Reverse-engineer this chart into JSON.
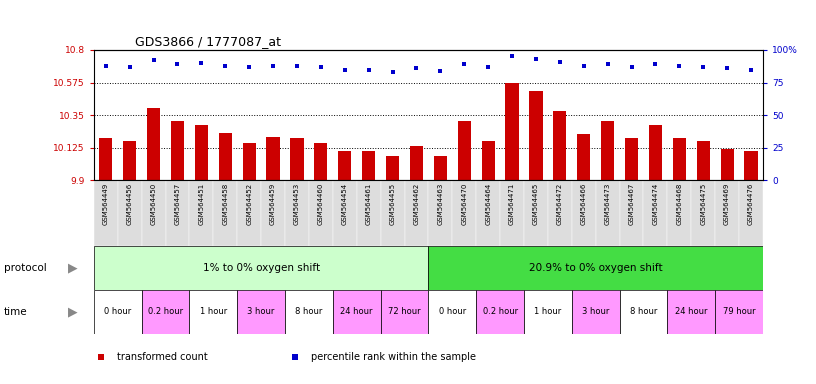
{
  "title": "GDS3866 / 1777087_at",
  "samples": [
    "GSM564449",
    "GSM564456",
    "GSM564450",
    "GSM564457",
    "GSM564451",
    "GSM564458",
    "GSM564452",
    "GSM564459",
    "GSM564453",
    "GSM564460",
    "GSM564454",
    "GSM564461",
    "GSM564455",
    "GSM564462",
    "GSM564463",
    "GSM564470",
    "GSM564464",
    "GSM564471",
    "GSM564465",
    "GSM564472",
    "GSM564466",
    "GSM564473",
    "GSM564467",
    "GSM564474",
    "GSM564468",
    "GSM564475",
    "GSM564469",
    "GSM564476"
  ],
  "bar_values": [
    10.19,
    10.17,
    10.4,
    10.31,
    10.28,
    10.23,
    10.16,
    10.2,
    10.19,
    10.16,
    10.1,
    10.1,
    10.07,
    10.14,
    10.07,
    10.31,
    10.17,
    10.57,
    10.52,
    10.38,
    10.22,
    10.31,
    10.19,
    10.28,
    10.19,
    10.17,
    10.12,
    10.1
  ],
  "percentile_values": [
    88,
    87,
    92,
    89,
    90,
    88,
    87,
    88,
    88,
    87,
    85,
    85,
    83,
    86,
    84,
    89,
    87,
    95,
    93,
    91,
    88,
    89,
    87,
    89,
    88,
    87,
    86,
    85
  ],
  "ymin": 9.9,
  "ymax": 10.8,
  "yticks_left": [
    9.9,
    10.125,
    10.35,
    10.575,
    10.8
  ],
  "ytick_labels_left": [
    "9.9",
    "10.125",
    "10.35",
    "10.575",
    "10.8"
  ],
  "yticks_right_vals": [
    0,
    25,
    50,
    75,
    100
  ],
  "ytick_labels_right": [
    "0",
    "25",
    "50",
    "75",
    "100%"
  ],
  "dotted_lines": [
    10.125,
    10.35,
    10.575
  ],
  "bar_color": "#cc0000",
  "dot_color": "#0000cc",
  "protocol_groups": [
    {
      "label": "1% to 0% oxygen shift",
      "start": 0,
      "end": 14,
      "color": "#ccffcc"
    },
    {
      "label": "20.9% to 0% oxygen shift",
      "start": 14,
      "end": 28,
      "color": "#44dd44"
    }
  ],
  "time_groups": [
    {
      "label": "0 hour",
      "start": 0,
      "end": 2,
      "color": "#ffffff"
    },
    {
      "label": "0.2 hour",
      "start": 2,
      "end": 4,
      "color": "#ff99ff"
    },
    {
      "label": "1 hour",
      "start": 4,
      "end": 6,
      "color": "#ffffff"
    },
    {
      "label": "3 hour",
      "start": 6,
      "end": 8,
      "color": "#ff99ff"
    },
    {
      "label": "8 hour",
      "start": 8,
      "end": 10,
      "color": "#ffffff"
    },
    {
      "label": "24 hour",
      "start": 10,
      "end": 12,
      "color": "#ff99ff"
    },
    {
      "label": "72 hour",
      "start": 12,
      "end": 14,
      "color": "#ff99ff"
    },
    {
      "label": "0 hour",
      "start": 14,
      "end": 16,
      "color": "#ffffff"
    },
    {
      "label": "0.2 hour",
      "start": 16,
      "end": 18,
      "color": "#ff99ff"
    },
    {
      "label": "1 hour",
      "start": 18,
      "end": 20,
      "color": "#ffffff"
    },
    {
      "label": "3 hour",
      "start": 20,
      "end": 22,
      "color": "#ff99ff"
    },
    {
      "label": "8 hour",
      "start": 22,
      "end": 24,
      "color": "#ffffff"
    },
    {
      "label": "24 hour",
      "start": 24,
      "end": 26,
      "color": "#ff99ff"
    },
    {
      "label": "79 hour",
      "start": 26,
      "end": 28,
      "color": "#ff99ff"
    }
  ],
  "legend_items": [
    {
      "color": "#cc0000",
      "marker": "s",
      "label": "transformed count"
    },
    {
      "color": "#0000cc",
      "marker": "s",
      "label": "percentile rank within the sample"
    }
  ]
}
